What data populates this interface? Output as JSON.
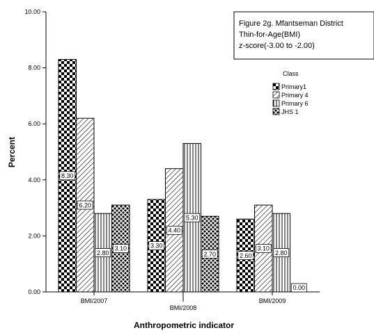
{
  "chart_data": {
    "type": "bar",
    "title": "Figure 2g. Mfantseman District",
    "subtitle": [
      "Thin-for-Age(BMI)",
      "z-score(-3.00 to -2.00)"
    ],
    "xlabel": "Anthropometric indicator",
    "ylabel": "Percent",
    "categories": [
      "BMI/2007",
      "BMI/2008",
      "BMI/2009"
    ],
    "ylim": [
      0,
      10
    ],
    "yticks": [
      "0.00",
      "2.00",
      "4.00",
      "6.00",
      "8.00",
      "10.00"
    ],
    "legend_title": "Class",
    "legend_position": "top-right",
    "grid": false,
    "series": [
      {
        "name": "Primary1",
        "pattern": "checker",
        "values": [
          8.3,
          3.3,
          2.6
        ],
        "labels": [
          "8.30",
          "3.30",
          "2.60"
        ]
      },
      {
        "name": "Primary 4",
        "pattern": "diagonal",
        "values": [
          6.2,
          4.4,
          3.1
        ],
        "labels": [
          "6.20",
          "4.40",
          "3.10"
        ]
      },
      {
        "name": "Primary 6",
        "pattern": "vertical",
        "values": [
          2.8,
          5.3,
          2.8
        ],
        "labels": [
          "2.80",
          "5.30",
          "2.80"
        ]
      },
      {
        "name": "JHS 1",
        "pattern": "crosshatch",
        "values": [
          3.1,
          2.7,
          0.0
        ],
        "labels": [
          "3.10",
          "2.70",
          "0.00"
        ]
      }
    ]
  }
}
